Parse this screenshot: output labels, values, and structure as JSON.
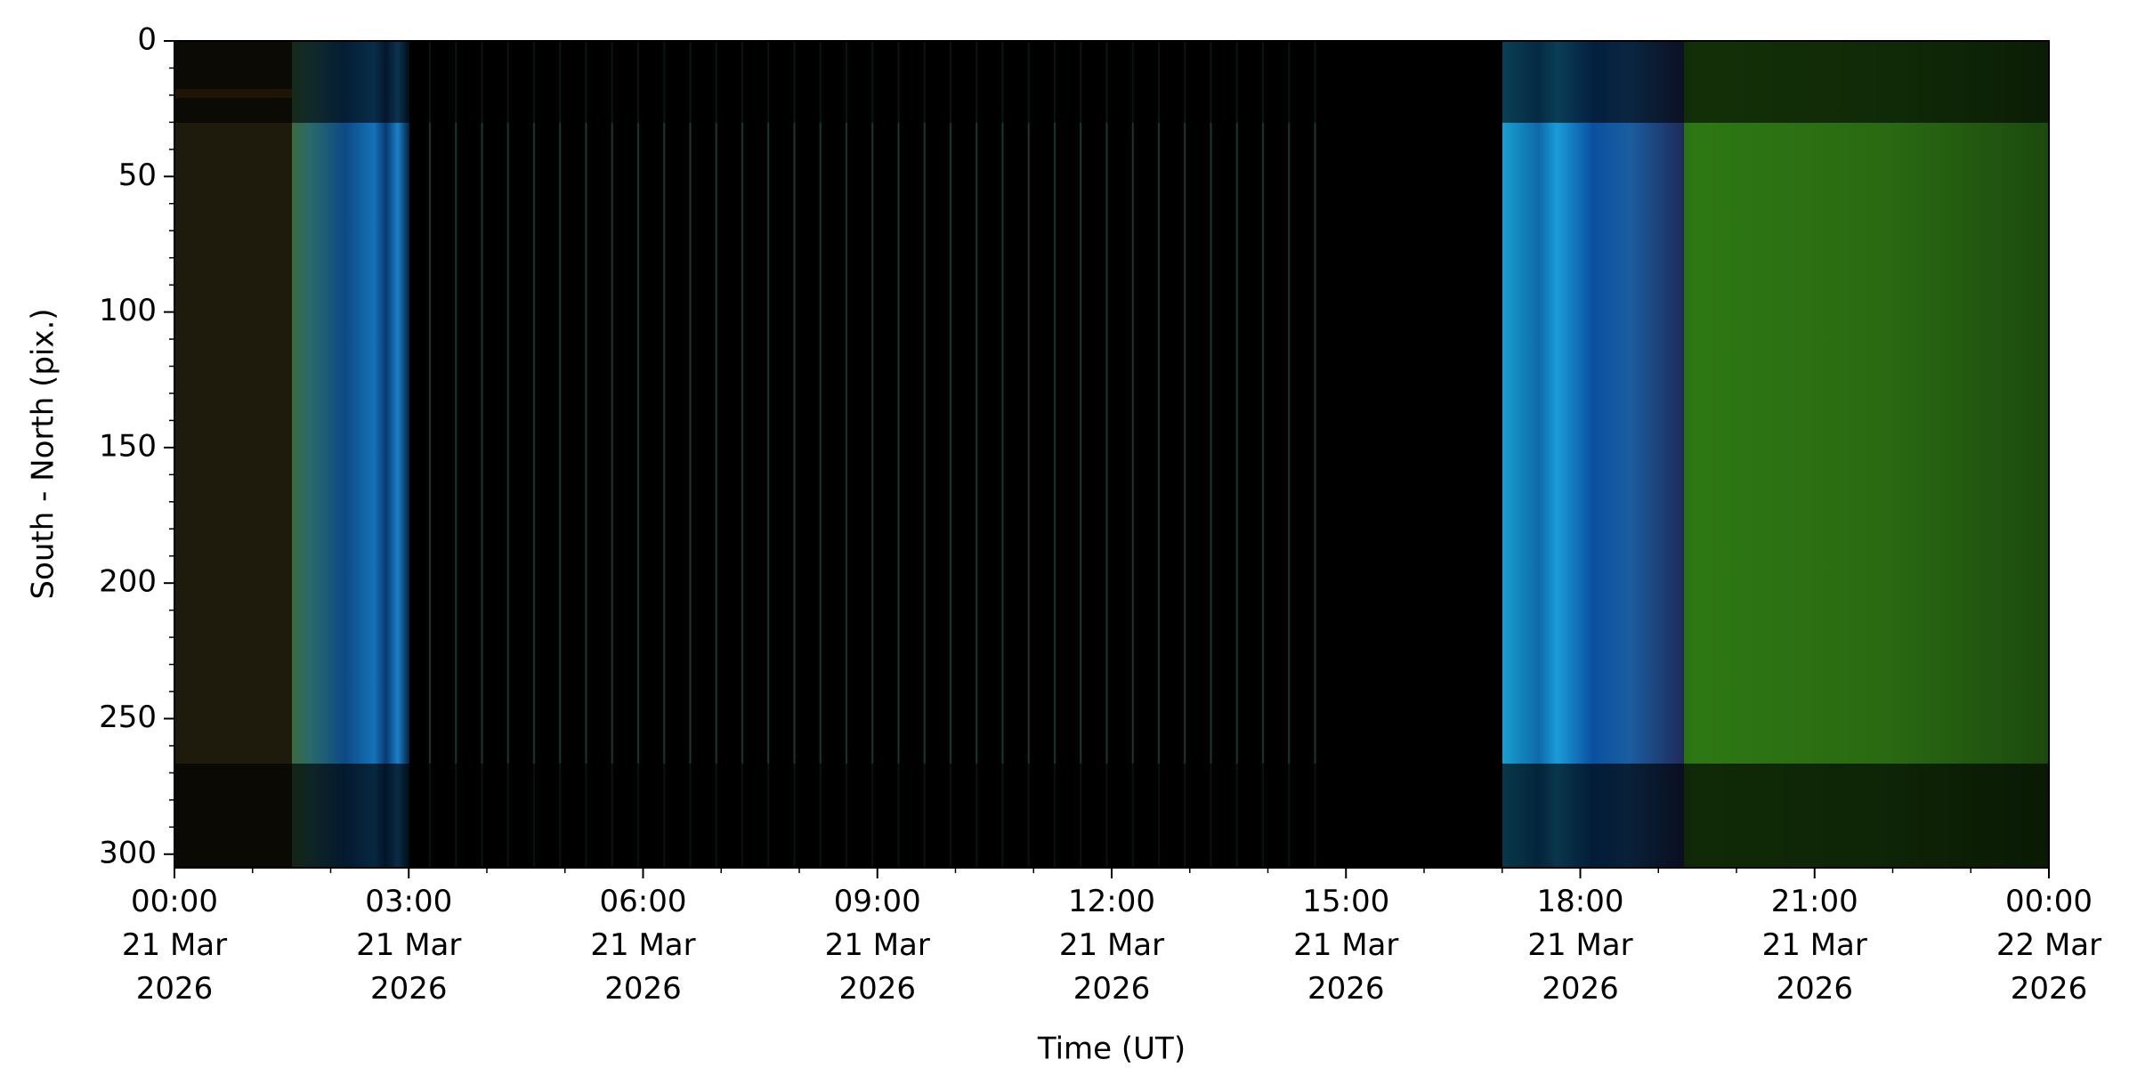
{
  "chart_data": {
    "type": "keogram",
    "xlabel": "Time (UT)",
    "ylabel": "South - North (pix.)",
    "xlim": [
      0,
      24
    ],
    "xticks": [
      {
        "value": 0,
        "label": "00:00\n21 Mar\n2026"
      },
      {
        "value": 3,
        "label": "03:00\n21 Mar\n2026"
      },
      {
        "value": 6,
        "label": "06:00\n21 Mar\n2026"
      },
      {
        "value": 9,
        "label": "09:00\n21 Mar\n2026"
      },
      {
        "value": 12,
        "label": "12:00\n21 Mar\n2026"
      },
      {
        "value": 15,
        "label": "15:00\n21 Mar\n2026"
      },
      {
        "value": 18,
        "label": "18:00\n21 Mar\n2026"
      },
      {
        "value": 21,
        "label": "21:00\n21 Mar\n2026"
      },
      {
        "value": 24,
        "label": "00:00\n22 Mar\n2026"
      }
    ],
    "xminorticks": [
      1,
      2,
      4,
      5,
      7,
      8,
      10,
      11,
      13,
      14,
      16,
      17,
      19,
      20,
      22,
      23
    ],
    "ylim": [
      305,
      0
    ],
    "yticks": [
      0,
      50,
      100,
      150,
      200,
      250,
      300
    ],
    "yminorticks": [
      10,
      20,
      30,
      40,
      60,
      70,
      80,
      90,
      110,
      120,
      130,
      140,
      160,
      170,
      180,
      190,
      210,
      220,
      230,
      240,
      260,
      270,
      280,
      290
    ]
  }
}
